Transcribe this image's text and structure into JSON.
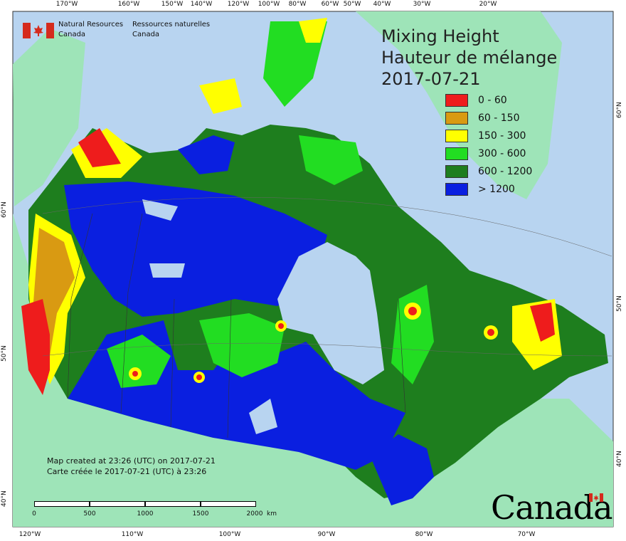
{
  "logo": {
    "name_en": "Natural Resources\nCanada",
    "name_fr": "Ressources naturelles\nCanada",
    "flag_color": "#d52b1e"
  },
  "title": {
    "line1": "Mixing Height",
    "line2": "Hauteur de mélange",
    "date": "2017-07-21"
  },
  "legend": [
    {
      "label": "0 - 60",
      "color": "#ee1c1c"
    },
    {
      "label": "60 - 150",
      "color": "#d99a12"
    },
    {
      "label": "150 - 300",
      "color": "#ffff00"
    },
    {
      "label": "300 - 600",
      "color": "#22dd22"
    },
    {
      "label": "600 - 1200",
      "color": "#1e7e1e"
    },
    {
      "label": "> 1200",
      "color": "#0a1fe0"
    }
  ],
  "credits": {
    "en": "Map created at 23:26 (UTC) on 2017-07-21",
    "fr": "Carte créée le 2017-07-21 (UTC) à 23:26"
  },
  "scale": {
    "labels": [
      "0",
      "500",
      "1000",
      "1500",
      "2000"
    ],
    "unit": "km"
  },
  "ticks": {
    "top": [
      "170°W",
      "160°W",
      "150°W",
      "140°W",
      "120°W",
      "100°W",
      "80°W",
      "60°W",
      "50°W",
      "40°W",
      "30°W",
      "20°W"
    ],
    "bottom": [
      "120°W",
      "110°W",
      "100°W",
      "90°W",
      "80°W",
      "70°W"
    ],
    "left": [
      "60°N",
      "50°N",
      "40°N"
    ],
    "right": [
      "60°N",
      "50°N",
      "40°N"
    ]
  },
  "wordmark": "Canada",
  "colors": {
    "ocean": "#b8d4f0",
    "land_outside": "#9ee4b8",
    "water": "#b8d4f0"
  }
}
